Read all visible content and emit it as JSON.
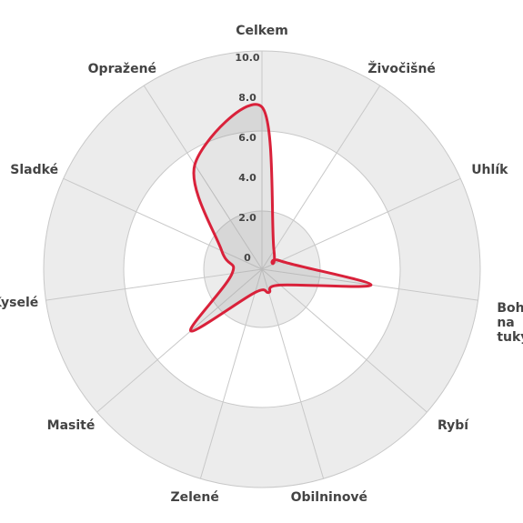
{
  "chart_data": {
    "type": "radar",
    "categories": [
      "Celkem",
      "Živočišné",
      "Uhlík",
      "Bohaté na tuky",
      "Rybí",
      "Obilninové",
      "Zelené",
      "Masité",
      "Kyselé",
      "Sladké",
      "Opražené"
    ],
    "series": [
      {
        "color": "#d9213a",
        "values": [
          7.2,
          0.2,
          0.1,
          4.6,
          0.3,
          0.3,
          0.3,
          3.8,
          0.6,
          1.3,
          5.3
        ]
      }
    ],
    "ylim": [
      0,
      10
    ],
    "yticks": [
      0,
      {
        "value": 2,
        "label": "2.0"
      },
      {
        "value": 4,
        "label": "4.0"
      },
      {
        "value": 6,
        "label": "6.0"
      },
      {
        "value": 8,
        "label": "8.0"
      },
      {
        "value": 10,
        "label": "10.0"
      }
    ]
  }
}
